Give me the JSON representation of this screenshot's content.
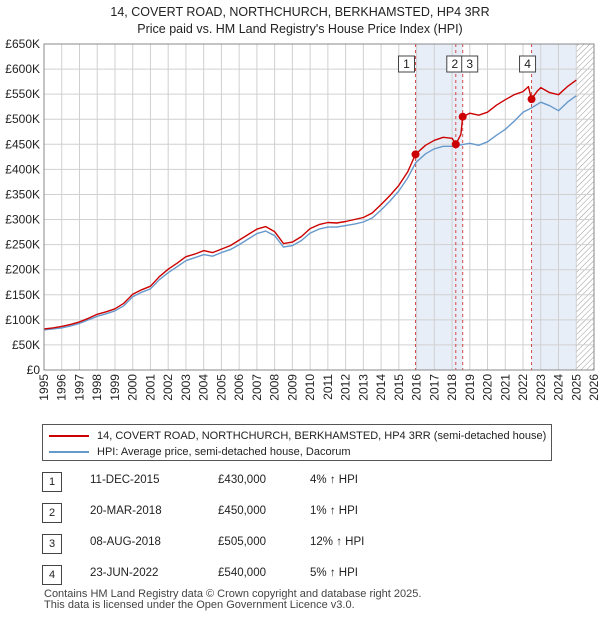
{
  "title_line1": "14, COVERT ROAD, NORTHCHURCH, BERKHAMSTED, HP4 3RR",
  "title_line2": "Price paid vs. HM Land Registry's House Price Index (HPI)",
  "chart_data": {
    "type": "line",
    "xlim": [
      1995,
      2026
    ],
    "ylim": [
      0,
      650000
    ],
    "yticks": [
      0,
      50000,
      100000,
      150000,
      200000,
      250000,
      300000,
      350000,
      400000,
      450000,
      500000,
      550000,
      600000,
      650000
    ],
    "ytick_labels": [
      "£0",
      "£50K",
      "£100K",
      "£150K",
      "£200K",
      "£250K",
      "£300K",
      "£350K",
      "£400K",
      "£450K",
      "£500K",
      "£550K",
      "£600K",
      "£650K"
    ],
    "xticks": [
      1995,
      1996,
      1997,
      1998,
      1999,
      2000,
      2001,
      2002,
      2003,
      2004,
      2005,
      2006,
      2007,
      2008,
      2009,
      2010,
      2011,
      2012,
      2013,
      2014,
      2015,
      2016,
      2017,
      2018,
      2019,
      2020,
      2021,
      2022,
      2023,
      2024,
      2025,
      2026
    ],
    "grid": true,
    "shaded_ranges": [
      [
        2015.95,
        2018.6
      ],
      [
        2022.48,
        2025.0
      ]
    ],
    "future_hatch_from": 2025.0,
    "series": [
      {
        "name": "14, COVERT ROAD, NORTHCHURCH, BERKHAMSTED, HP4 3RR (semi-detached house)",
        "color": "#cc0000",
        "x": [
          1995.0,
          1995.5,
          1996.0,
          1996.5,
          1997.0,
          1997.5,
          1998.0,
          1998.5,
          1999.0,
          1999.5,
          2000.0,
          2000.5,
          2001.0,
          2001.5,
          2002.0,
          2002.5,
          2003.0,
          2003.5,
          2004.0,
          2004.5,
          2005.0,
          2005.5,
          2006.0,
          2006.5,
          2007.0,
          2007.5,
          2008.0,
          2008.5,
          2009.0,
          2009.5,
          2010.0,
          2010.5,
          2011.0,
          2011.5,
          2012.0,
          2012.5,
          2013.0,
          2013.5,
          2014.0,
          2014.5,
          2015.0,
          2015.5,
          2015.94,
          2016.5,
          2017.0,
          2017.5,
          2018.0,
          2018.21,
          2018.5,
          2018.6,
          2019.0,
          2019.5,
          2020.0,
          2020.5,
          2021.0,
          2021.5,
          2022.0,
          2022.3,
          2022.48,
          2022.8,
          2023.0,
          2023.5,
          2024.0,
          2024.5,
          2025.0
        ],
        "values": [
          82000,
          84000,
          87000,
          91000,
          96000,
          103000,
          111000,
          116000,
          122000,
          133000,
          151000,
          160000,
          167000,
          186000,
          201000,
          213000,
          226000,
          231000,
          238000,
          234000,
          241000,
          248000,
          259000,
          270000,
          281000,
          286000,
          276000,
          252000,
          255000,
          266000,
          282000,
          290000,
          294000,
          293000,
          296000,
          300000,
          304000,
          313000,
          330000,
          348000,
          368000,
          395000,
          430000,
          448000,
          458000,
          464000,
          462000,
          450000,
          470000,
          505000,
          512000,
          508000,
          514000,
          528000,
          539000,
          549000,
          555000,
          565000,
          540000,
          556000,
          563000,
          553000,
          549000,
          565000,
          578000
        ]
      },
      {
        "name": "HPI: Average price, semi-detached house, Dacorum",
        "color": "#6699cc",
        "x": [
          1995.0,
          1995.5,
          1996.0,
          1996.5,
          1997.0,
          1997.5,
          1998.0,
          1998.5,
          1999.0,
          1999.5,
          2000.0,
          2000.5,
          2001.0,
          2001.5,
          2002.0,
          2002.5,
          2003.0,
          2003.5,
          2004.0,
          2004.5,
          2005.0,
          2005.5,
          2006.0,
          2006.5,
          2007.0,
          2007.5,
          2008.0,
          2008.5,
          2009.0,
          2009.5,
          2010.0,
          2010.5,
          2011.0,
          2011.5,
          2012.0,
          2012.5,
          2013.0,
          2013.5,
          2014.0,
          2014.5,
          2015.0,
          2015.5,
          2015.94,
          2016.5,
          2017.0,
          2017.5,
          2018.0,
          2018.5,
          2019.0,
          2019.5,
          2020.0,
          2020.5,
          2021.0,
          2021.5,
          2022.0,
          2022.5,
          2023.0,
          2023.5,
          2024.0,
          2024.5,
          2025.0
        ],
        "values": [
          80000,
          82000,
          84000,
          88000,
          93000,
          100000,
          107000,
          112000,
          118000,
          128000,
          146000,
          155000,
          162000,
          180000,
          194000,
          206000,
          218000,
          224000,
          230000,
          227000,
          234000,
          240000,
          250000,
          261000,
          272000,
          277000,
          268000,
          245000,
          248000,
          258000,
          273000,
          281000,
          285000,
          285000,
          288000,
          291000,
          295000,
          303000,
          319000,
          337000,
          357000,
          383000,
          413000,
          431000,
          441000,
          446000,
          446000,
          449000,
          452000,
          448000,
          455000,
          468000,
          480000,
          496000,
          514000,
          523000,
          534000,
          527000,
          517000,
          534000,
          547000
        ]
      }
    ],
    "sales": [
      {
        "num": "1",
        "x": 2015.94,
        "value": 430000
      },
      {
        "num": "2",
        "x": 2018.21,
        "value": 450000
      },
      {
        "num": "3",
        "x": 2018.6,
        "value": 505000
      },
      {
        "num": "4",
        "x": 2022.48,
        "value": 540000
      }
    ]
  },
  "legend": {
    "price_label": "14, COVERT ROAD, NORTHCHURCH, BERKHAMSTED, HP4 3RR (semi-detached house)",
    "hpi_label": "HPI: Average price, semi-detached house, Dacorum",
    "price_color": "#cc0000",
    "hpi_color": "#6699cc"
  },
  "sales_table": [
    {
      "num": "1",
      "date": "11-DEC-2015",
      "price": "£430,000",
      "hpi": "4% ↑ HPI"
    },
    {
      "num": "2",
      "date": "20-MAR-2018",
      "price": "£450,000",
      "hpi": "1% ↑ HPI"
    },
    {
      "num": "3",
      "date": "08-AUG-2018",
      "price": "£505,000",
      "hpi": "12% ↑ HPI"
    },
    {
      "num": "4",
      "date": "23-JUN-2022",
      "price": "£540,000",
      "hpi": "5% ↑ HPI"
    }
  ],
  "footer_line1": "Contains HM Land Registry data © Crown copyright and database right 2025.",
  "footer_line2": "This data is licensed under the Open Government Licence v3.0."
}
